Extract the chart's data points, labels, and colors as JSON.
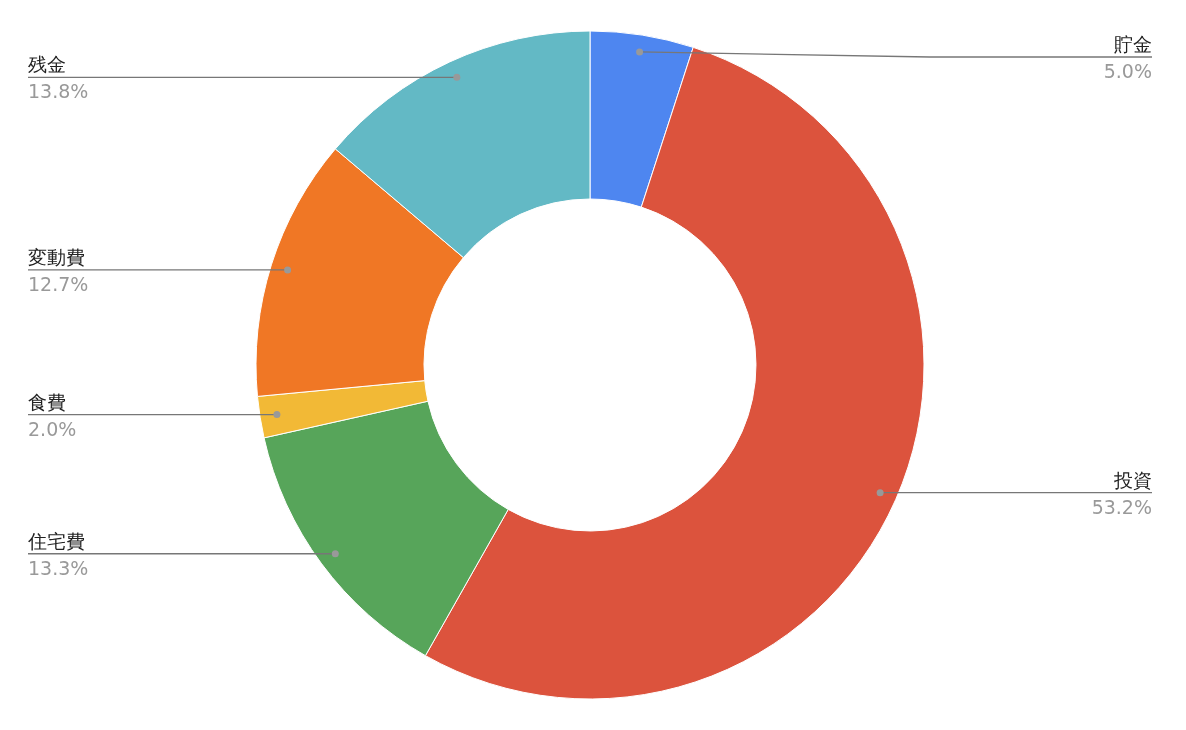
{
  "chart_data": {
    "type": "donut",
    "categories": [
      "貯金",
      "投資",
      "住宅費",
      "食費",
      "変動費",
      "残金"
    ],
    "values": [
      5.0,
      53.2,
      13.3,
      2.0,
      12.7,
      13.8
    ],
    "colors": [
      "#4e86f0",
      "#dc533d",
      "#57a55a",
      "#f2b936",
      "#f07725",
      "#63b9c5"
    ],
    "value_labels": [
      "5.0%",
      "53.2%",
      "13.3%",
      "2.0%",
      "12.7%",
      "13.8%"
    ]
  }
}
